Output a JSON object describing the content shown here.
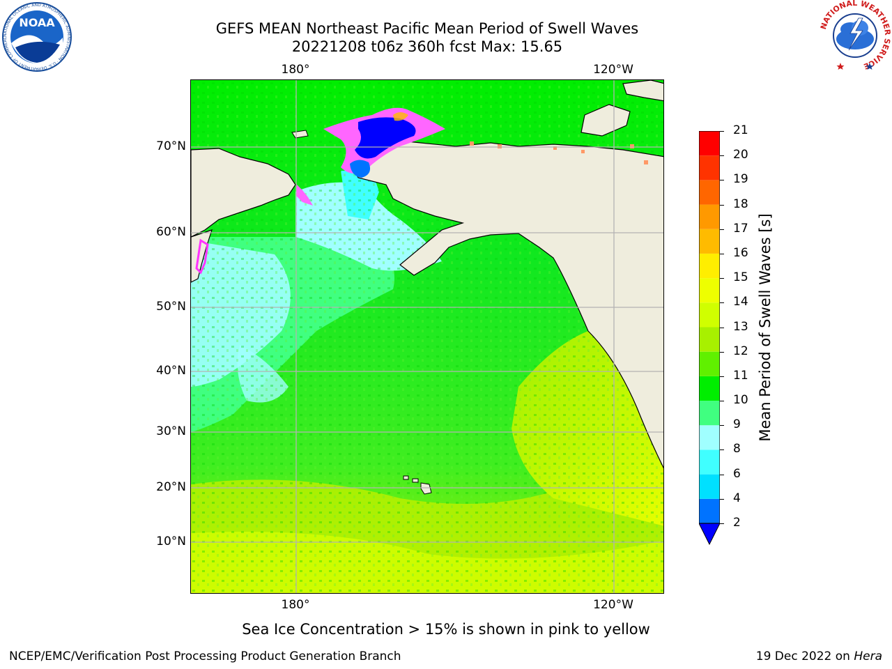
{
  "title": {
    "line1": "GEFS MEAN Northeast Pacific Mean Period of Swell Waves",
    "line2": "20221208 t06z 360h fcst   Max: 15.65"
  },
  "map": {
    "lon_top": [
      "180°",
      "120°W"
    ],
    "lon_bottom": [
      "180°",
      "120°W"
    ],
    "lat": [
      "70°N",
      "60°N",
      "50°N",
      "40°N",
      "30°N",
      "20°N",
      "10°N"
    ],
    "colors": {
      "land": "#efeddd",
      "ice_pink": "#ff66ff",
      "ice_blue": "#0000ff",
      "grid": "#b3b3b3"
    }
  },
  "colorbar": {
    "label": "Mean Period of Swell Waves [s]",
    "ticks": [
      "2",
      "4",
      "6",
      "8",
      "9",
      "10",
      "11",
      "12",
      "13",
      "14",
      "15",
      "16",
      "17",
      "18",
      "19",
      "20",
      "21"
    ],
    "colors": [
      "#0073ff",
      "#00e0ff",
      "#40ffff",
      "#a0ffff",
      "#40ff80",
      "#00ee00",
      "#60f000",
      "#a8f000",
      "#d0ff00",
      "#eeff00",
      "#ffee00",
      "#ffbb00",
      "#ff9900",
      "#ff6600",
      "#ff3300",
      "#ff0000"
    ],
    "extend_color": "#0000ff"
  },
  "caption": "Sea Ice Concentration > 15% is shown in pink to yellow",
  "footer": {
    "left": "NCEP/EMC/Verification Post Processing Product Generation Branch",
    "right_prefix": "19 Dec 2022 on ",
    "right_host": "Hera"
  },
  "logos": {
    "noaa_text": "NOAA",
    "noaa_ring": "NATIONAL OCEANIC AND ATMOSPHERIC ADMINISTRATION · U.S. DEPARTMENT OF COMMERCE",
    "nws_ring": "NATIONAL WEATHER SERVICE"
  }
}
